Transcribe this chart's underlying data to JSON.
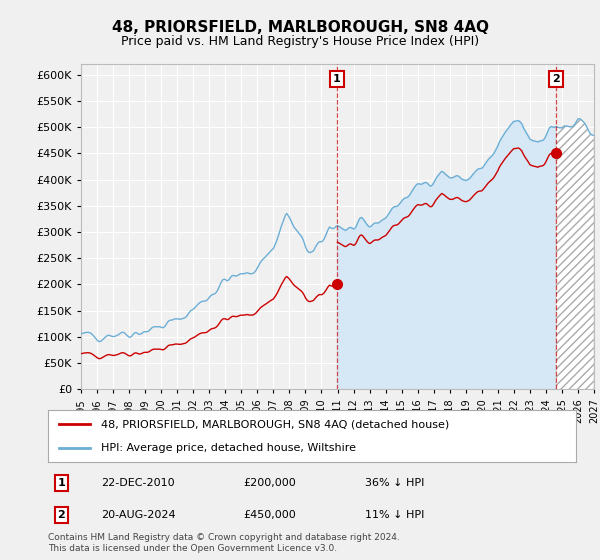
{
  "title": "48, PRIORSFIELD, MARLBOROUGH, SN8 4AQ",
  "subtitle": "Price paid vs. HM Land Registry's House Price Index (HPI)",
  "footer": "Contains HM Land Registry data © Crown copyright and database right 2024.\nThis data is licensed under the Open Government Licence v3.0.",
  "legend_line1": "48, PRIORSFIELD, MARLBOROUGH, SN8 4AQ (detached house)",
  "legend_line2": "HPI: Average price, detached house, Wiltshire",
  "transaction1_date": "22-DEC-2010",
  "transaction1_price": "£200,000",
  "transaction1_hpi": "36% ↓ HPI",
  "transaction2_date": "20-AUG-2024",
  "transaction2_price": "£450,000",
  "transaction2_hpi": "11% ↓ HPI",
  "hpi_color": "#6baed6",
  "hpi_fill_color": "#d6e8f5",
  "price_color": "#cc0000",
  "vline_color": "#cc0000",
  "background_color": "#f0f0f0",
  "plot_background": "#f0f0f0",
  "grid_color": "#ffffff",
  "ylim": [
    0,
    620000
  ],
  "yticks": [
    0,
    50000,
    100000,
    150000,
    200000,
    250000,
    300000,
    350000,
    400000,
    450000,
    500000,
    550000,
    600000
  ],
  "transaction1_x": 2010.97,
  "transaction1_y": 200000,
  "transaction2_x": 2024.63,
  "transaction2_y": 450000,
  "xmin": 1995,
  "xmax": 2027
}
